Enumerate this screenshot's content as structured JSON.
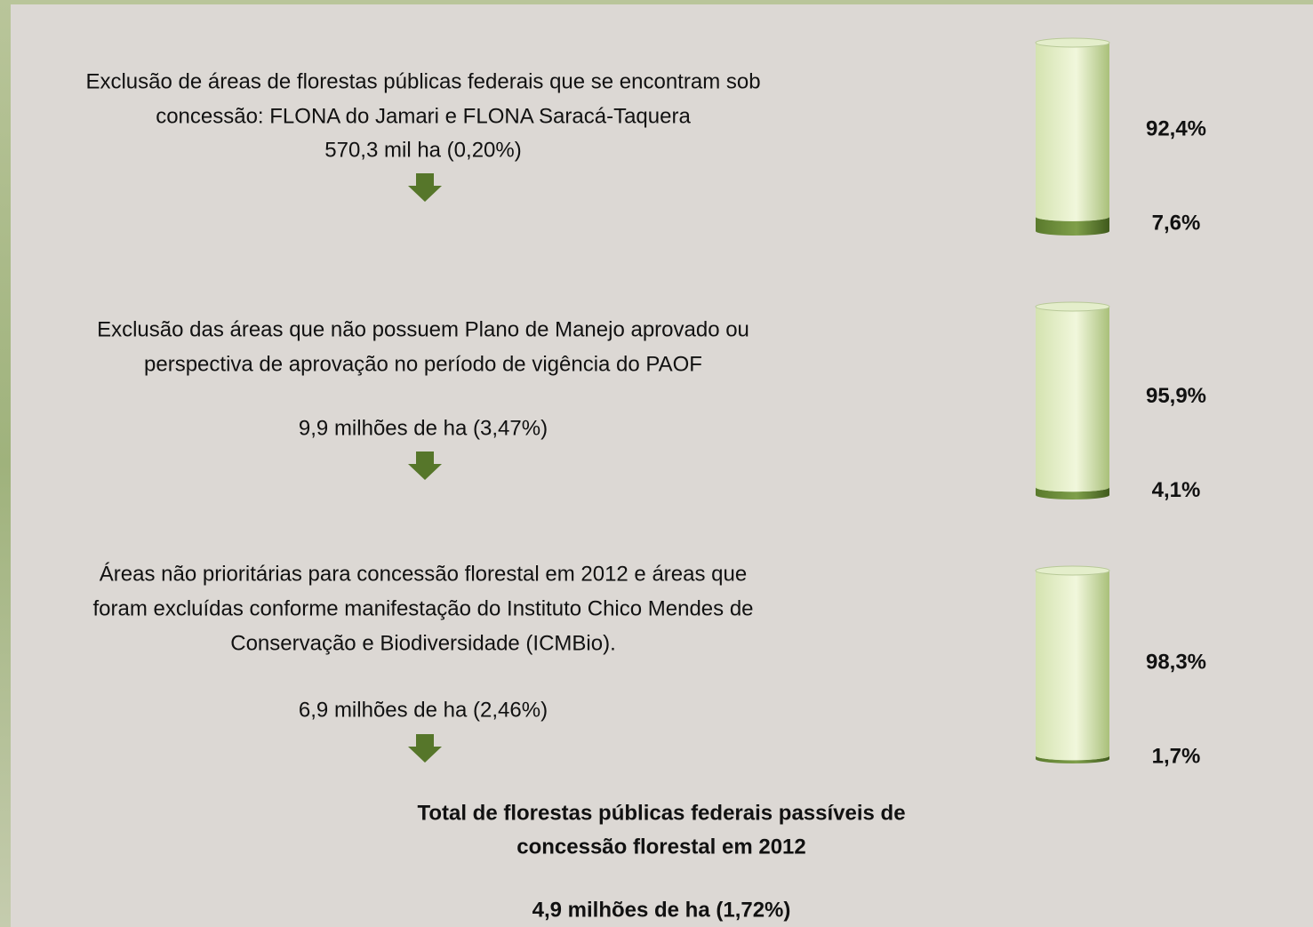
{
  "steps": [
    {
      "description": [
        "Exclusão de áreas de florestas públicas federais que se encontram sob",
        "concessão: FLONA do Jamari e FLONA Saracá-Taquera"
      ],
      "amount": "570,3 mil ha (0,20%)"
    },
    {
      "description": [
        "Exclusão das áreas que não possuem Plano de Manejo aprovado ou",
        "perspectiva de aprovação no período de vigência do PAOF"
      ],
      "amount": "9,9 milhões de ha (3,47%)"
    },
    {
      "description": [
        "Áreas não prioritárias para concessão florestal em 2012 e áreas que",
        "foram excluídas conforme manifestação do Instituto Chico Mendes de",
        "Conservação e Biodiversidade (ICMBio)."
      ],
      "amount": "6,9 milhões de ha (2,46%)"
    }
  ],
  "total": {
    "title": [
      "Total de florestas públicas federais passíveis de",
      "concessão florestal em 2012"
    ],
    "amount": "4,9 milhões de ha (1,72%)"
  },
  "chart_data": [
    {
      "type": "bar",
      "stacked": true,
      "ylim": [
        0,
        100
      ],
      "series": [
        {
          "color": "#5a7a2c",
          "values": [
            7.6
          ],
          "value_labels": [
            "7,6%"
          ]
        },
        {
          "color": "#d4e3b0",
          "values": [
            92.4
          ],
          "value_labels": [
            "92,4%"
          ]
        }
      ]
    },
    {
      "type": "bar",
      "stacked": true,
      "ylim": [
        0,
        100
      ],
      "series": [
        {
          "color": "#5a7a2c",
          "values": [
            4.1
          ],
          "value_labels": [
            "4,1%"
          ]
        },
        {
          "color": "#d4e3b0",
          "values": [
            95.9
          ],
          "value_labels": [
            "95,9%"
          ]
        }
      ]
    },
    {
      "type": "bar",
      "stacked": true,
      "ylim": [
        0,
        100
      ],
      "series": [
        {
          "color": "#5a7a2c",
          "values": [
            1.7
          ],
          "value_labels": [
            "1,7%"
          ]
        },
        {
          "color": "#d4e3b0",
          "values": [
            98.3
          ],
          "value_labels": [
            "98,3%"
          ]
        }
      ]
    }
  ]
}
